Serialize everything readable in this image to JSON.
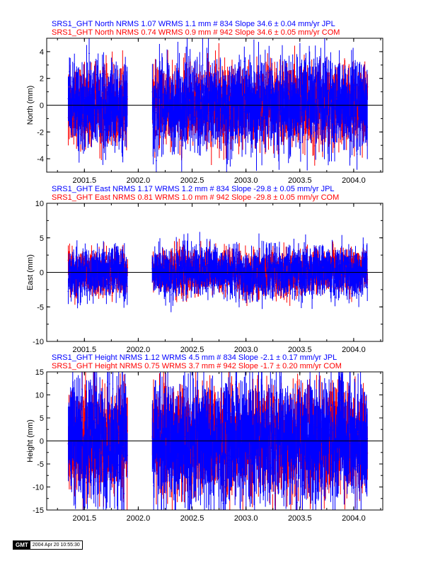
{
  "chart_data": [
    {
      "type": "scatter",
      "ylabel": "North (mm)",
      "ylim": [
        -5,
        5
      ],
      "yticks": [
        -4,
        -2,
        0,
        2,
        4
      ],
      "xlim": [
        2001.15,
        2004.27
      ],
      "xticks": [
        "2001.5",
        "2002.0",
        "2002.5",
        "2003.0",
        "2003.5",
        "2004.0"
      ],
      "grid": false,
      "legend": "top-left",
      "series": [
        {
          "header": "SRS1_GHT North NRMS 1.07 WRMS  1.1 mm # 834 Slope   34.6 ±  0.04 mm/yr JPL",
          "color": "#0000ff",
          "wrms": 1.1
        },
        {
          "header": "SRS1_GHT North NRMS 0.74 WRMS  0.9 mm # 942 Slope   34.6 ±  0.05 mm/yr COM",
          "color": "#ff0000",
          "wrms": 0.9
        }
      ]
    },
    {
      "type": "scatter",
      "ylabel": "East (mm)",
      "ylim": [
        -10,
        10
      ],
      "yticks": [
        -10,
        -5,
        0,
        5,
        10
      ],
      "xlim": [
        2001.15,
        2004.27
      ],
      "xticks": [
        "2001.5",
        "2002.0",
        "2002.5",
        "2003.0",
        "2003.5",
        "2004.0"
      ],
      "grid": false,
      "legend": "top-left",
      "series": [
        {
          "header": "SRS1_GHT East NRMS 1.17 WRMS  1.2 mm # 834 Slope  -29.8 ±  0.05 mm/yr JPL",
          "color": "#0000ff",
          "wrms": 1.2
        },
        {
          "header": "SRS1_GHT East NRMS 0.81 WRMS  1.0 mm # 942 Slope  -29.8 ±  0.05 mm/yr COM",
          "color": "#ff0000",
          "wrms": 1.0
        }
      ]
    },
    {
      "type": "scatter",
      "ylabel": "Height (mm)",
      "ylim": [
        -15,
        15
      ],
      "yticks": [
        -15,
        -10,
        -5,
        0,
        5,
        10,
        15
      ],
      "xlim": [
        2001.15,
        2004.27
      ],
      "xticks": [
        "2001.5",
        "2002.0",
        "2002.5",
        "2003.0",
        "2003.5",
        "2004.0"
      ],
      "grid": false,
      "legend": "top-left",
      "series": [
        {
          "header": "SRS1_GHT Height NRMS 1.12 WRMS  4.5 mm # 834 Slope   -2.1 ±  0.17 mm/yr JPL",
          "color": "#0000ff",
          "wrms": 4.5
        },
        {
          "header": "SRS1_GHT Height NRMS 0.75 WRMS  3.7 mm # 942 Slope   -1.7 ±  0.20 mm/yr COM",
          "color": "#ff0000",
          "wrms": 3.7
        }
      ]
    }
  ],
  "stamp": {
    "logo": "GMT",
    "timestamp": "2004 Apr 20 10:55:30"
  }
}
